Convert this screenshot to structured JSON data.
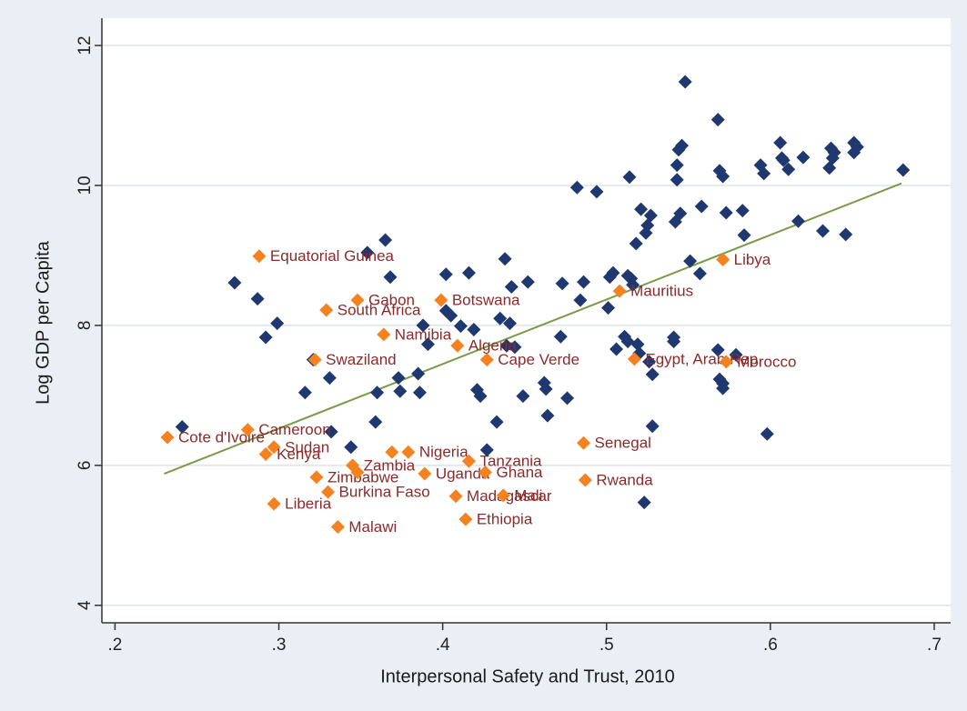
{
  "chart_data": {
    "type": "scatter",
    "x_label": "Interpersonal Safety and Trust, 2010",
    "y_label": "Log GDP per Capita",
    "xlim": [
      0.192,
      0.71
    ],
    "ylim": [
      3.75,
      12.39
    ],
    "xticks": [
      {
        "value": 0.2,
        "label": ".2"
      },
      {
        "value": 0.3,
        "label": ".3"
      },
      {
        "value": 0.4,
        "label": ".4"
      },
      {
        "value": 0.5,
        "label": ".5"
      },
      {
        "value": 0.6,
        "label": ".6"
      },
      {
        "value": 0.7,
        "label": ".7"
      }
    ],
    "yticks": [
      4,
      6,
      8,
      10,
      12
    ],
    "grid": true,
    "series": [
      {
        "color": "#1f3870",
        "marker": "diamond",
        "x": [
          0.241,
          0.273,
          0.287,
          0.292,
          0.299,
          0.316,
          0.321,
          0.331,
          0.332,
          0.344,
          0.354,
          0.359,
          0.365,
          0.368,
          0.36,
          0.374,
          0.373,
          0.386,
          0.385,
          0.391,
          0.388,
          0.402,
          0.402,
          0.405,
          0.416,
          0.411,
          0.419,
          0.421,
          0.423,
          0.433,
          0.427,
          0.435,
          0.438,
          0.441,
          0.439,
          0.444,
          0.442,
          0.452,
          0.449,
          0.462,
          0.463,
          0.464,
          0.472,
          0.473,
          0.476,
          0.482,
          0.484,
          0.486,
          0.494,
          0.501,
          0.502,
          0.506,
          0.504,
          0.514,
          0.511,
          0.513,
          0.513,
          0.515,
          0.516,
          0.519,
          0.52,
          0.518,
          0.521,
          0.524,
          0.525,
          0.527,
          0.528,
          0.528,
          0.523,
          0.526,
          0.543,
          0.542,
          0.545,
          0.541,
          0.541,
          0.543,
          0.544,
          0.546,
          0.551,
          0.548,
          0.557,
          0.558,
          0.568,
          0.568,
          0.569,
          0.571,
          0.573,
          0.569,
          0.571,
          0.571,
          0.579,
          0.583,
          0.584,
          0.594,
          0.596,
          0.598,
          0.606,
          0.607,
          0.608,
          0.611,
          0.617,
          0.62,
          0.632,
          0.636,
          0.637,
          0.638,
          0.639,
          0.646,
          0.651,
          0.653,
          0.651,
          0.681
        ],
        "values": [
          6.55,
          8.61,
          8.38,
          7.83,
          8.03,
          7.04,
          7.51,
          7.25,
          6.48,
          6.26,
          9.04,
          6.62,
          9.22,
          8.69,
          7.04,
          7.06,
          7.25,
          7.04,
          7.31,
          7.73,
          8.0,
          8.21,
          8.73,
          8.14,
          8.75,
          7.99,
          7.94,
          7.08,
          6.99,
          6.62,
          6.22,
          8.1,
          8.95,
          8.03,
          7.71,
          7.69,
          8.55,
          8.62,
          6.99,
          7.18,
          7.09,
          6.71,
          7.84,
          8.6,
          6.96,
          9.97,
          8.36,
          8.62,
          9.91,
          8.25,
          8.69,
          7.66,
          8.75,
          10.12,
          7.84,
          7.77,
          8.71,
          8.67,
          8.58,
          7.73,
          7.6,
          9.17,
          9.66,
          9.32,
          9.43,
          9.57,
          7.3,
          6.56,
          5.47,
          7.48,
          10.08,
          9.48,
          9.6,
          7.83,
          7.77,
          10.29,
          10.51,
          10.57,
          8.92,
          11.48,
          8.74,
          9.7,
          7.65,
          10.94,
          10.21,
          10.13,
          9.61,
          7.23,
          7.1,
          7.17,
          7.58,
          9.64,
          9.29,
          10.29,
          10.17,
          6.45,
          10.61,
          10.39,
          10.36,
          10.23,
          9.49,
          10.4,
          9.35,
          10.25,
          10.53,
          10.39,
          10.47,
          9.3,
          10.61,
          10.55,
          10.47,
          10.22
        ]
      },
      {
        "color": "#f58220",
        "marker": "diamond",
        "label_color": "#8c2a2a",
        "x": [
          0.232,
          0.281,
          0.297,
          0.292,
          0.288,
          0.329,
          0.348,
          0.399,
          0.364,
          0.409,
          0.322,
          0.427,
          0.508,
          0.571,
          0.517,
          0.573,
          0.486,
          0.487,
          0.379,
          0.416,
          0.345,
          0.323,
          0.389,
          0.426,
          0.33,
          0.408,
          0.437,
          0.297,
          0.336,
          0.414,
          0.369,
          0.348
        ],
        "values": [
          6.4,
          6.51,
          6.26,
          6.16,
          8.99,
          8.22,
          8.36,
          8.36,
          7.87,
          7.71,
          7.51,
          7.51,
          8.49,
          8.94,
          7.52,
          7.48,
          6.32,
          5.79,
          6.19,
          6.06,
          6.0,
          5.83,
          5.88,
          5.9,
          5.62,
          5.56,
          5.57,
          5.45,
          5.12,
          5.23,
          6.19,
          5.9
        ],
        "labels": [
          "Cote d'Ivoire",
          "Cameroon",
          "Sudan",
          "Kenya",
          "Equatorial Guinea",
          "South Africa",
          "Gabon",
          "Botswana",
          "Namibia",
          "Algeria",
          "Swaziland",
          "Cape Verde",
          "Mauritius",
          "Libya",
          "Egypt, Arab Rep.",
          "Morocco",
          "Senegal",
          "Rwanda",
          "Nigeria",
          "Tanzania",
          "Zambia",
          "Zimbabwe",
          "Uganda",
          "Ghana",
          "Burkina Faso",
          "Madagascar",
          "Mali",
          "Liberia",
          "Malawi",
          "Ethiopia",
          null,
          null
        ]
      }
    ],
    "fit_line": {
      "color": "#7a9a4a",
      "x": [
        0.23,
        0.68
      ],
      "y": [
        5.88,
        10.03
      ]
    }
  }
}
